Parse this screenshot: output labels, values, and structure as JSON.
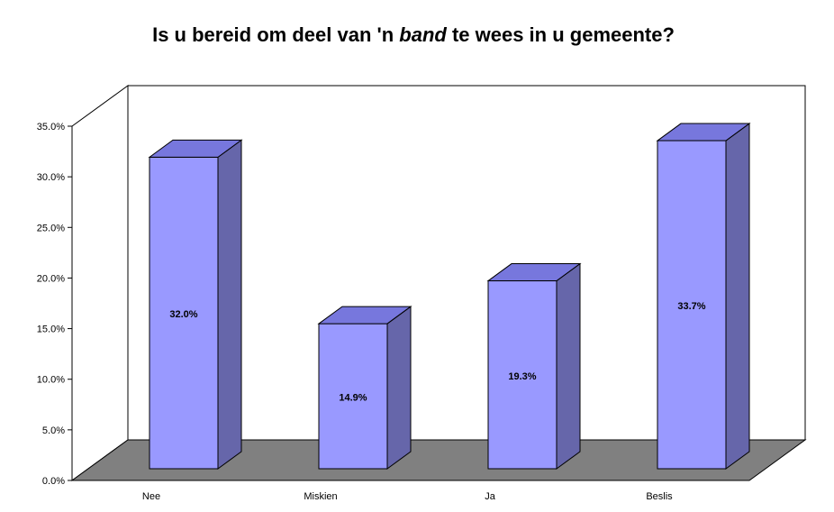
{
  "chart_data": {
    "type": "bar",
    "title_parts": [
      "Is u bereid om deel van 'n ",
      "band",
      " te wees in u gemeente?"
    ],
    "categories": [
      "Nee",
      "Miskien",
      "Ja",
      "Beslis"
    ],
    "values": [
      32.0,
      14.9,
      19.3,
      33.7
    ],
    "data_labels": [
      "32.0%",
      "14.9%",
      "19.3%",
      "33.7%"
    ],
    "ylim": [
      0,
      35
    ],
    "yticks": [
      0,
      5,
      10,
      15,
      20,
      25,
      30,
      35
    ],
    "ytick_labels": [
      "0.0%",
      "5.0%",
      "10.0%",
      "15.0%",
      "20.0%",
      "25.0%",
      "30.0%",
      "35.0%"
    ],
    "xlabel": "",
    "ylabel": "",
    "grid": false,
    "style": "3d-column"
  },
  "colors": {
    "bar_front": "#9999ff",
    "bar_top": "#7777dd",
    "bar_side": "#6666aa",
    "floor": "#808080",
    "edge": "#000000"
  }
}
